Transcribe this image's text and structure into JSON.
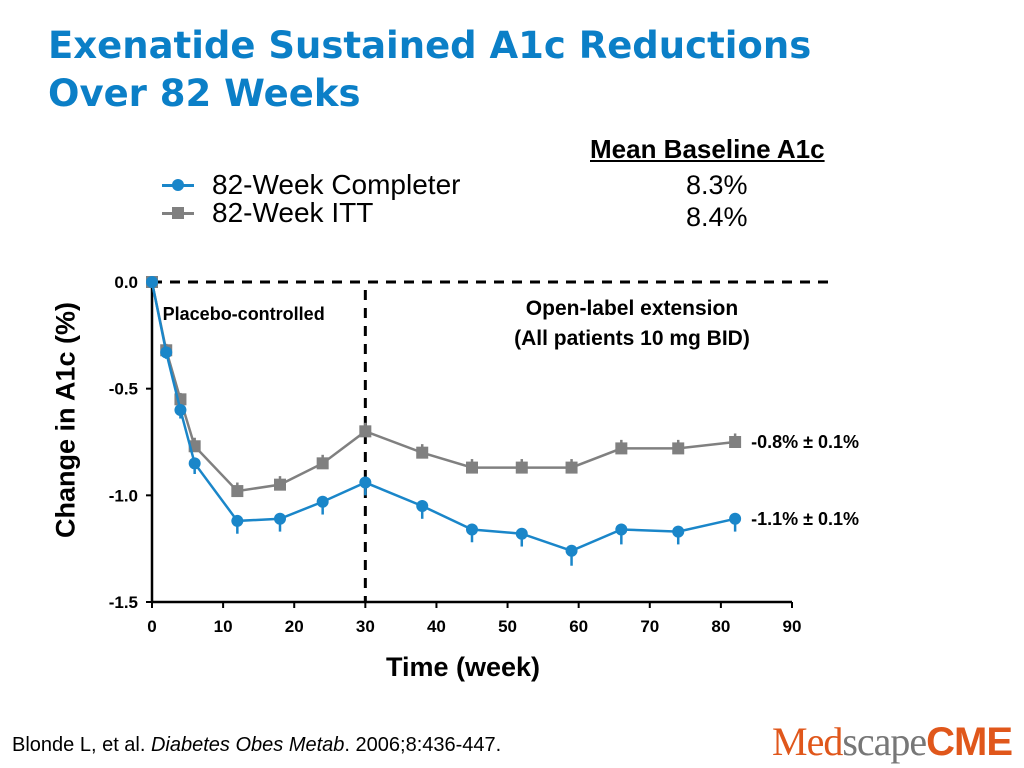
{
  "title": {
    "line1": "Exenatide Sustained A1c Reductions",
    "line2": "Over 82 Weeks"
  },
  "legend": {
    "items": [
      {
        "label": "82-Week Completer",
        "color": "#1a86c9",
        "marker": "circle"
      },
      {
        "label": "82-Week ITT",
        "color": "#808080",
        "marker": "square"
      }
    ]
  },
  "baseline": {
    "heading": "Mean Baseline A1c",
    "values": [
      "8.3%",
      "8.4%"
    ]
  },
  "chart_data": {
    "type": "line",
    "xlabel": "Time (week)",
    "ylabel": "Change in A1c (%)",
    "xlim": [
      0,
      90
    ],
    "ylim": [
      -1.5,
      0.0
    ],
    "xticks": [
      "0",
      "10",
      "20",
      "30",
      "40",
      "50",
      "60",
      "70",
      "80",
      "90"
    ],
    "yticks": [
      "0.0",
      "-0.5",
      "-1.0",
      "-1.5"
    ],
    "reference_lines": [
      {
        "orientation": "horizontal",
        "value": 0.0,
        "style": "dashed"
      },
      {
        "orientation": "vertical",
        "value": 30,
        "style": "dashed"
      }
    ],
    "region_labels": [
      {
        "text": "Placebo-controlled"
      },
      {
        "text": "Open-label extension",
        "text2": "(All patients 10 mg BID)"
      }
    ],
    "series": [
      {
        "name": "82-Week Completer",
        "color": "#1a86c9",
        "marker": "circle",
        "x": [
          0,
          2,
          4,
          6,
          12,
          18,
          24,
          30,
          38,
          45,
          52,
          59,
          66,
          74,
          82
        ],
        "y": [
          0.0,
          -0.33,
          -0.6,
          -0.85,
          -1.12,
          -1.11,
          -1.03,
          -0.94,
          -1.05,
          -1.16,
          -1.18,
          -1.26,
          -1.16,
          -1.17,
          -1.11
        ],
        "err": [
          0.02,
          0.03,
          0.04,
          0.05,
          0.06,
          0.06,
          0.06,
          0.06,
          0.06,
          0.06,
          0.06,
          0.07,
          0.07,
          0.06,
          0.06
        ],
        "end_label": "-1.1% ± 0.1%"
      },
      {
        "name": "82-Week ITT",
        "color": "#808080",
        "marker": "square",
        "x": [
          0,
          2,
          4,
          6,
          12,
          18,
          24,
          30,
          38,
          45,
          52,
          59,
          66,
          74,
          82
        ],
        "y": [
          0.0,
          -0.32,
          -0.55,
          -0.77,
          -0.98,
          -0.95,
          -0.85,
          -0.7,
          -0.8,
          -0.87,
          -0.87,
          -0.87,
          -0.78,
          -0.78,
          -0.75
        ],
        "err": [
          0.02,
          0.03,
          0.03,
          0.04,
          0.04,
          0.04,
          0.04,
          0.04,
          0.04,
          0.04,
          0.04,
          0.04,
          0.04,
          0.04,
          0.04
        ],
        "end_label": "-0.8% ± 0.1%"
      }
    ]
  },
  "citation": {
    "authors": "Blonde L, et al. ",
    "journal": "Diabetes Obes Metab",
    "details": ". 2006;8:436-447."
  },
  "logo": {
    "med": "Med",
    "scape": "scape",
    "cme": "CME"
  }
}
